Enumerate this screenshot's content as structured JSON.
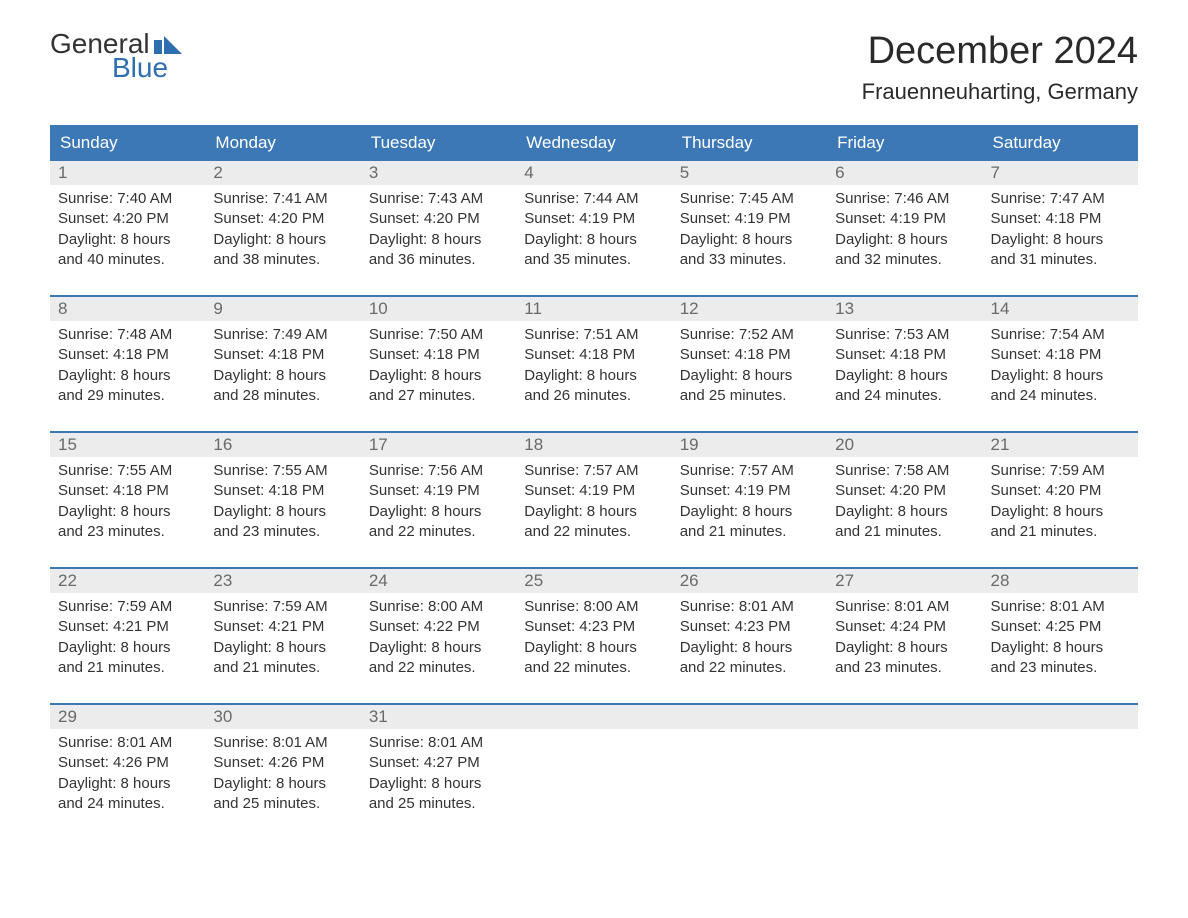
{
  "logo": {
    "word1": "General",
    "word2": "Blue",
    "flag_color": "#2f6fb0"
  },
  "title": "December 2024",
  "location": "Frauenneuharting, Germany",
  "header_bg": "#3b78b5",
  "header_fg": "#ffffff",
  "daynum_bg": "#ececec",
  "daynum_fg": "#6a6a6a",
  "body_fg": "#333333",
  "day_names": [
    "Sunday",
    "Monday",
    "Tuesday",
    "Wednesday",
    "Thursday",
    "Friday",
    "Saturday"
  ],
  "weeks": [
    [
      {
        "n": "1",
        "sr": "Sunrise: 7:40 AM",
        "ss": "Sunset: 4:20 PM",
        "d1": "Daylight: 8 hours",
        "d2": "and 40 minutes."
      },
      {
        "n": "2",
        "sr": "Sunrise: 7:41 AM",
        "ss": "Sunset: 4:20 PM",
        "d1": "Daylight: 8 hours",
        "d2": "and 38 minutes."
      },
      {
        "n": "3",
        "sr": "Sunrise: 7:43 AM",
        "ss": "Sunset: 4:20 PM",
        "d1": "Daylight: 8 hours",
        "d2": "and 36 minutes."
      },
      {
        "n": "4",
        "sr": "Sunrise: 7:44 AM",
        "ss": "Sunset: 4:19 PM",
        "d1": "Daylight: 8 hours",
        "d2": "and 35 minutes."
      },
      {
        "n": "5",
        "sr": "Sunrise: 7:45 AM",
        "ss": "Sunset: 4:19 PM",
        "d1": "Daylight: 8 hours",
        "d2": "and 33 minutes."
      },
      {
        "n": "6",
        "sr": "Sunrise: 7:46 AM",
        "ss": "Sunset: 4:19 PM",
        "d1": "Daylight: 8 hours",
        "d2": "and 32 minutes."
      },
      {
        "n": "7",
        "sr": "Sunrise: 7:47 AM",
        "ss": "Sunset: 4:18 PM",
        "d1": "Daylight: 8 hours",
        "d2": "and 31 minutes."
      }
    ],
    [
      {
        "n": "8",
        "sr": "Sunrise: 7:48 AM",
        "ss": "Sunset: 4:18 PM",
        "d1": "Daylight: 8 hours",
        "d2": "and 29 minutes."
      },
      {
        "n": "9",
        "sr": "Sunrise: 7:49 AM",
        "ss": "Sunset: 4:18 PM",
        "d1": "Daylight: 8 hours",
        "d2": "and 28 minutes."
      },
      {
        "n": "10",
        "sr": "Sunrise: 7:50 AM",
        "ss": "Sunset: 4:18 PM",
        "d1": "Daylight: 8 hours",
        "d2": "and 27 minutes."
      },
      {
        "n": "11",
        "sr": "Sunrise: 7:51 AM",
        "ss": "Sunset: 4:18 PM",
        "d1": "Daylight: 8 hours",
        "d2": "and 26 minutes."
      },
      {
        "n": "12",
        "sr": "Sunrise: 7:52 AM",
        "ss": "Sunset: 4:18 PM",
        "d1": "Daylight: 8 hours",
        "d2": "and 25 minutes."
      },
      {
        "n": "13",
        "sr": "Sunrise: 7:53 AM",
        "ss": "Sunset: 4:18 PM",
        "d1": "Daylight: 8 hours",
        "d2": "and 24 minutes."
      },
      {
        "n": "14",
        "sr": "Sunrise: 7:54 AM",
        "ss": "Sunset: 4:18 PM",
        "d1": "Daylight: 8 hours",
        "d2": "and 24 minutes."
      }
    ],
    [
      {
        "n": "15",
        "sr": "Sunrise: 7:55 AM",
        "ss": "Sunset: 4:18 PM",
        "d1": "Daylight: 8 hours",
        "d2": "and 23 minutes."
      },
      {
        "n": "16",
        "sr": "Sunrise: 7:55 AM",
        "ss": "Sunset: 4:18 PM",
        "d1": "Daylight: 8 hours",
        "d2": "and 23 minutes."
      },
      {
        "n": "17",
        "sr": "Sunrise: 7:56 AM",
        "ss": "Sunset: 4:19 PM",
        "d1": "Daylight: 8 hours",
        "d2": "and 22 minutes."
      },
      {
        "n": "18",
        "sr": "Sunrise: 7:57 AM",
        "ss": "Sunset: 4:19 PM",
        "d1": "Daylight: 8 hours",
        "d2": "and 22 minutes."
      },
      {
        "n": "19",
        "sr": "Sunrise: 7:57 AM",
        "ss": "Sunset: 4:19 PM",
        "d1": "Daylight: 8 hours",
        "d2": "and 21 minutes."
      },
      {
        "n": "20",
        "sr": "Sunrise: 7:58 AM",
        "ss": "Sunset: 4:20 PM",
        "d1": "Daylight: 8 hours",
        "d2": "and 21 minutes."
      },
      {
        "n": "21",
        "sr": "Sunrise: 7:59 AM",
        "ss": "Sunset: 4:20 PM",
        "d1": "Daylight: 8 hours",
        "d2": "and 21 minutes."
      }
    ],
    [
      {
        "n": "22",
        "sr": "Sunrise: 7:59 AM",
        "ss": "Sunset: 4:21 PM",
        "d1": "Daylight: 8 hours",
        "d2": "and 21 minutes."
      },
      {
        "n": "23",
        "sr": "Sunrise: 7:59 AM",
        "ss": "Sunset: 4:21 PM",
        "d1": "Daylight: 8 hours",
        "d2": "and 21 minutes."
      },
      {
        "n": "24",
        "sr": "Sunrise: 8:00 AM",
        "ss": "Sunset: 4:22 PM",
        "d1": "Daylight: 8 hours",
        "d2": "and 22 minutes."
      },
      {
        "n": "25",
        "sr": "Sunrise: 8:00 AM",
        "ss": "Sunset: 4:23 PM",
        "d1": "Daylight: 8 hours",
        "d2": "and 22 minutes."
      },
      {
        "n": "26",
        "sr": "Sunrise: 8:01 AM",
        "ss": "Sunset: 4:23 PM",
        "d1": "Daylight: 8 hours",
        "d2": "and 22 minutes."
      },
      {
        "n": "27",
        "sr": "Sunrise: 8:01 AM",
        "ss": "Sunset: 4:24 PM",
        "d1": "Daylight: 8 hours",
        "d2": "and 23 minutes."
      },
      {
        "n": "28",
        "sr": "Sunrise: 8:01 AM",
        "ss": "Sunset: 4:25 PM",
        "d1": "Daylight: 8 hours",
        "d2": "and 23 minutes."
      }
    ],
    [
      {
        "n": "29",
        "sr": "Sunrise: 8:01 AM",
        "ss": "Sunset: 4:26 PM",
        "d1": "Daylight: 8 hours",
        "d2": "and 24 minutes."
      },
      {
        "n": "30",
        "sr": "Sunrise: 8:01 AM",
        "ss": "Sunset: 4:26 PM",
        "d1": "Daylight: 8 hours",
        "d2": "and 25 minutes."
      },
      {
        "n": "31",
        "sr": "Sunrise: 8:01 AM",
        "ss": "Sunset: 4:27 PM",
        "d1": "Daylight: 8 hours",
        "d2": "and 25 minutes."
      },
      {
        "n": "",
        "sr": "",
        "ss": "",
        "d1": "",
        "d2": ""
      },
      {
        "n": "",
        "sr": "",
        "ss": "",
        "d1": "",
        "d2": ""
      },
      {
        "n": "",
        "sr": "",
        "ss": "",
        "d1": "",
        "d2": ""
      },
      {
        "n": "",
        "sr": "",
        "ss": "",
        "d1": "",
        "d2": ""
      }
    ]
  ]
}
